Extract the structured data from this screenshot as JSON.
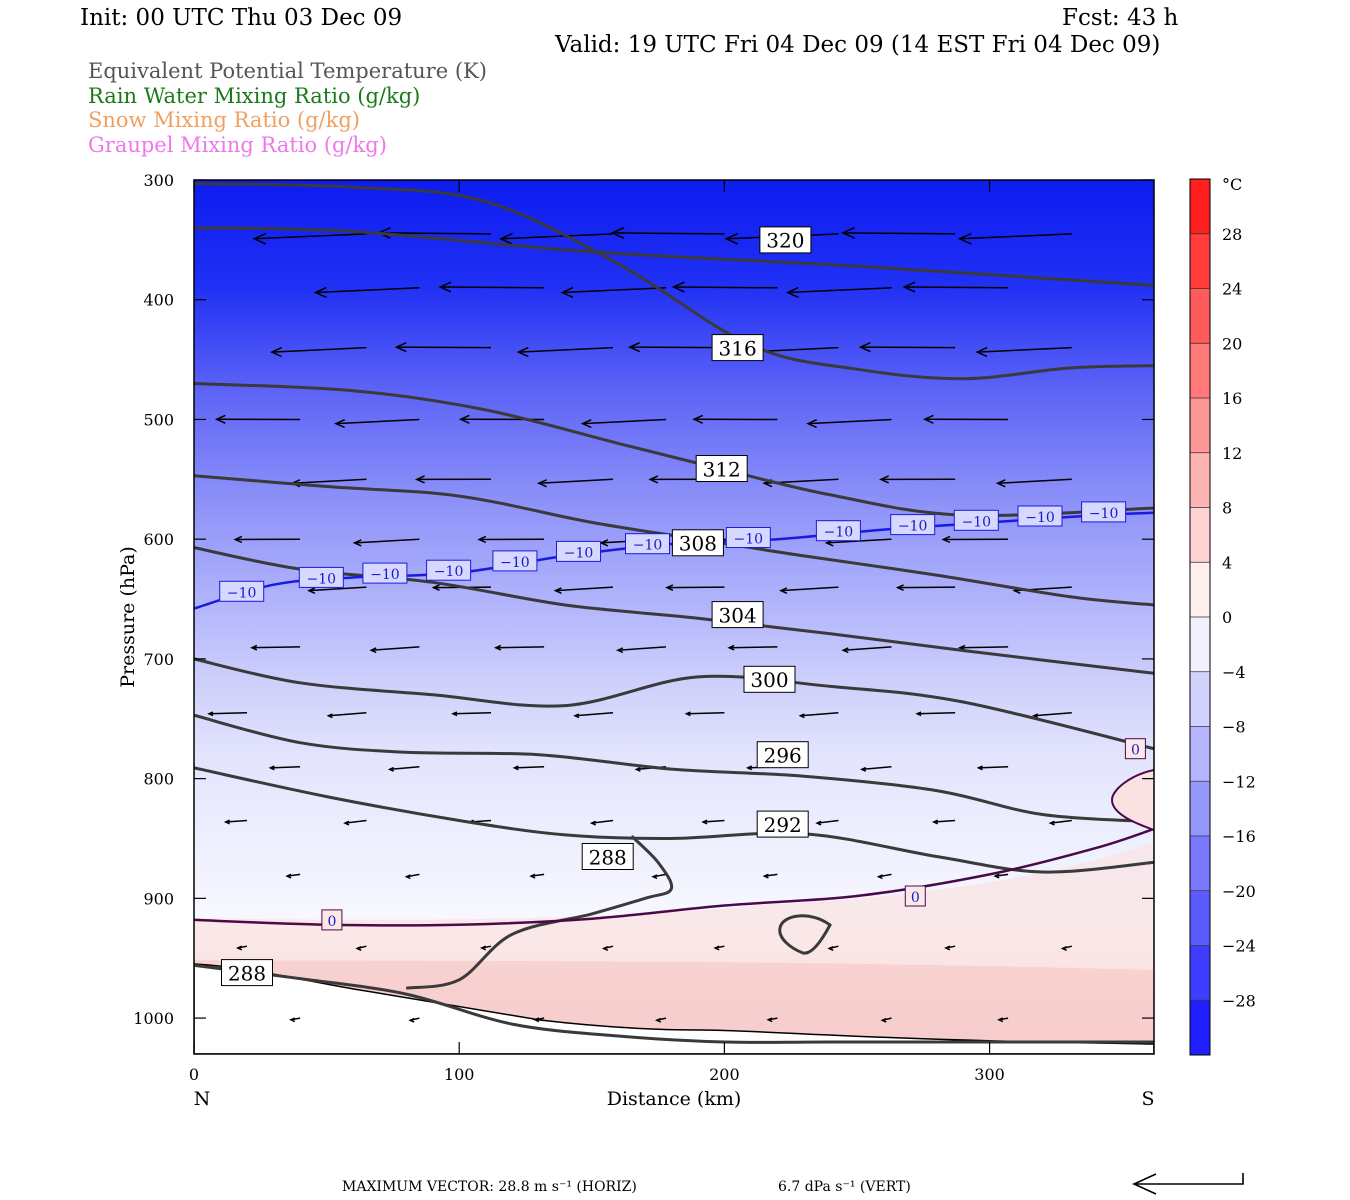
{
  "header": {
    "init": "Init: 00 UTC Thu 03 Dec 09",
    "fcst": "Fcst:   43 h",
    "valid": "Valid: 19 UTC Fri 04 Dec 09 (14 EST Fri 04 Dec 09)"
  },
  "legend": [
    {
      "label": "Equivalent Potential Temperature (K)",
      "color": "#555555"
    },
    {
      "label": "Rain Water Mixing Ratio (g/kg)",
      "color": "#1a7a1a"
    },
    {
      "label": "Snow Mixing Ratio (g/kg)",
      "color": "#f0a060"
    },
    {
      "label": "Graupel Mixing Ratio (g/kg)",
      "color": "#ee77ee"
    }
  ],
  "chart_data": {
    "type": "cross-section contour",
    "xlabel": "Distance (km)",
    "ylabel": "Pressure (hPa)",
    "xlim": [
      0,
      362
    ],
    "ylim": [
      300,
      1030
    ],
    "x_ticks": [
      0,
      100,
      200,
      300
    ],
    "y_ticks": [
      300,
      400,
      500,
      600,
      700,
      800,
      900,
      1000
    ],
    "x_end_labels": {
      "left": "N",
      "right": "S"
    },
    "colorbar": {
      "unit": "°C",
      "range": [
        -32,
        32
      ],
      "step": 4,
      "tick_labels": [
        "28",
        "24",
        "20",
        "16",
        "12",
        "8",
        "4",
        "0",
        "−4",
        "−8",
        "−12",
        "−16",
        "−20",
        "−24",
        "−28"
      ],
      "tick_values": [
        28,
        24,
        20,
        16,
        12,
        8,
        4,
        0,
        -4,
        -8,
        -12,
        -16,
        -20,
        -24,
        -28
      ],
      "cold_color": "#1010ff",
      "warm_color": "#ff1010"
    },
    "theta_e_contours": [
      {
        "label": "320",
        "x": [
          0,
          60,
          150,
          250,
          362
        ],
        "p": [
          340,
          343,
          360,
          372,
          388
        ],
        "label_at": [
          223,
          350
        ]
      },
      {
        "label": "316",
        "x": [
          0,
          60,
          110,
          160,
          210,
          250,
          290,
          330,
          362
        ],
        "p": [
          303,
          306,
          318,
          370,
          438,
          458,
          466,
          457,
          455
        ],
        "label_at": [
          205,
          440
        ]
      },
      {
        "label": "312",
        "x": [
          0,
          60,
          110,
          160,
          200,
          240,
          290,
          362
        ],
        "p": [
          470,
          476,
          492,
          520,
          542,
          563,
          580,
          574
        ],
        "label_at": [
          199,
          541
        ]
      },
      {
        "label": "308",
        "x": [
          0,
          50,
          100,
          150,
          190,
          230,
          280,
          330,
          362
        ],
        "p": [
          547,
          556,
          564,
          586,
          600,
          614,
          630,
          648,
          655
        ],
        "label_at": [
          190,
          603
        ]
      },
      {
        "label": "304",
        "x": [
          0,
          40,
          90,
          140,
          190,
          240,
          290,
          362
        ],
        "p": [
          607,
          625,
          636,
          655,
          666,
          679,
          693,
          712
        ],
        "label_at": [
          205,
          663
        ]
      },
      {
        "label": "300",
        "x": [
          0,
          40,
          90,
          140,
          190,
          240,
          290,
          362
        ],
        "p": [
          700,
          720,
          730,
          739,
          715,
          723,
          736,
          775
        ],
        "label_at": [
          217,
          717
        ]
      },
      {
        "label": "296",
        "x": [
          0,
          40,
          80,
          130,
          180,
          230,
          280,
          320,
          362
        ],
        "p": [
          747,
          770,
          778,
          780,
          792,
          798,
          810,
          830,
          836
        ],
        "label_at": [
          222,
          780
        ]
      },
      {
        "label": "292",
        "x": [
          0,
          50,
          100,
          140,
          180,
          230,
          280,
          320,
          362
        ],
        "p": [
          791,
          815,
          835,
          847,
          850,
          846,
          865,
          878,
          870
        ],
        "label_at": [
          222,
          838
        ]
      },
      {
        "label": "288",
        "x": [
          80,
          100,
          120,
          150,
          170,
          180,
          175,
          165
        ],
        "p": [
          975,
          968,
          930,
          913,
          900,
          892,
          870,
          848
        ],
        "label_at": [
          156,
          865
        ]
      },
      {
        "label": "288",
        "x": [
          0,
          40,
          80,
          120,
          160,
          200,
          240,
          300,
          362
        ],
        "p": [
          956,
          967,
          980,
          1005,
          1015,
          1020,
          1020,
          1020,
          1020
        ],
        "label_at": [
          20,
          962
        ]
      }
    ],
    "isotherm_minus10": {
      "label": "−10",
      "x": [
        0,
        30,
        60,
        100,
        140,
        180,
        220,
        260,
        300,
        340,
        362
      ],
      "p": [
        658,
        638,
        632,
        628,
        614,
        604,
        600,
        592,
        586,
        580,
        578
      ]
    },
    "isotherm_zero": {
      "label": "0",
      "x": [
        0,
        50,
        100,
        150,
        200,
        250,
        300,
        340,
        362
      ],
      "p": [
        918,
        922,
        922,
        917,
        906,
        898,
        880,
        858,
        842
      ]
    },
    "isotherm_zero_labels": [
      "0",
      "0",
      "0"
    ],
    "isotherm_minus10_labels": [
      "−10",
      "−10",
      "−10",
      "−10",
      "−10",
      "−10",
      "−10",
      "−10",
      "−10",
      "−10",
      "−10",
      "−10",
      "−10",
      "−10",
      "−10",
      "−10"
    ]
  },
  "footer": {
    "max_vector_text": "MAXIMUM VECTOR:  28.8 m s⁻¹ (HORIZ)",
    "vert_text": "6.7 dPa s⁻¹ (VERT)"
  }
}
